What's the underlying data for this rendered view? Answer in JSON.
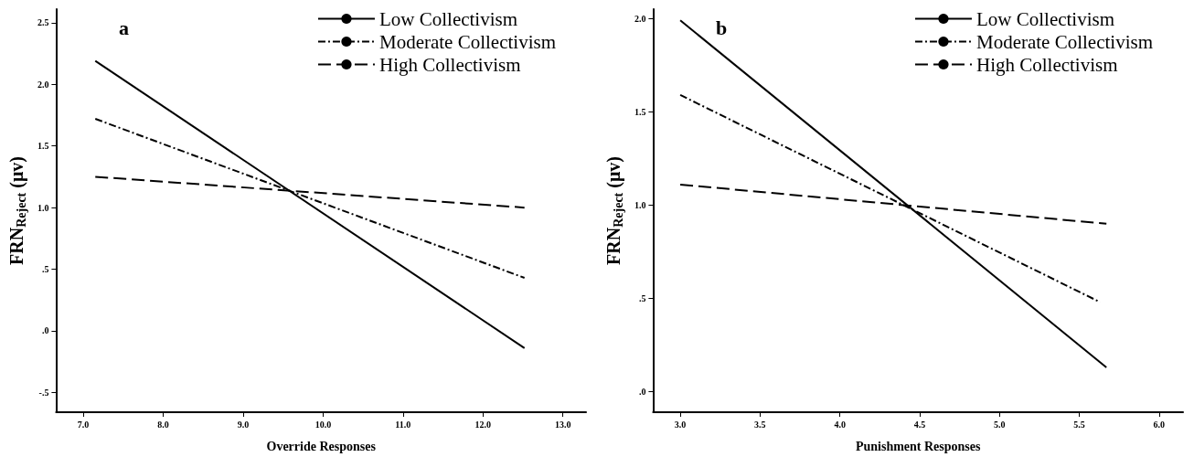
{
  "chart_data": [
    {
      "type": "line",
      "title": "a",
      "xlabel": "Override Responses",
      "ylabel": "FRN$_{Reject}$ (μv)",
      "legend": "top right",
      "grid": false,
      "xlim": [
        6.66,
        13.29
      ],
      "xticks": [
        {
          "value": 7,
          "label": "7.0"
        },
        {
          "value": 8,
          "label": "8.0"
        },
        {
          "value": 9,
          "label": "9.0"
        },
        {
          "value": 10,
          "label": "10.0"
        },
        {
          "value": 11,
          "label": "11.0"
        },
        {
          "value": 12,
          "label": "12.0"
        },
        {
          "value": 13,
          "label": "13.0"
        }
      ],
      "ylim": [
        -0.66,
        2.61
      ],
      "yticks": [
        {
          "value": -0.5,
          "label": "-.5"
        },
        {
          "value": 0,
          "label": ".0"
        },
        {
          "value": 0.5,
          "label": ".5"
        },
        {
          "value": 1,
          "label": "1.0"
        },
        {
          "value": 1.5,
          "label": "1.5"
        },
        {
          "value": 2,
          "label": "2.0"
        },
        {
          "value": 2.5,
          "label": "2.5"
        }
      ],
      "series": [
        {
          "name": "Low Collectivism",
          "color": "#000000",
          "line_style": "solid",
          "x": [
            7.15,
            12.52
          ],
          "values": [
            2.19,
            -0.14
          ]
        },
        {
          "name": "Moderate Collectivism",
          "color": "#000000",
          "line_style": "dashdot",
          "x": [
            7.15,
            12.52
          ],
          "values": [
            1.72,
            0.43
          ]
        },
        {
          "name": "High Collectivism",
          "color": "#000000",
          "line_style": "dashed",
          "x": [
            7.15,
            12.52
          ],
          "values": [
            1.25,
            1.0
          ]
        }
      ]
    },
    {
      "type": "line",
      "title": "b",
      "xlabel": "Punishment Responses",
      "ylabel": "FRN$_{Reject}$ (μv)",
      "legend": "top right",
      "grid": false,
      "xlim": [
        2.83,
        6.15
      ],
      "xticks": [
        {
          "value": 3,
          "label": "3.0"
        },
        {
          "value": 3.5,
          "label": "3.5"
        },
        {
          "value": 4,
          "label": "4.0"
        },
        {
          "value": 4.5,
          "label": "4.5"
        },
        {
          "value": 5,
          "label": "5.0"
        },
        {
          "value": 5.5,
          "label": "5.5"
        },
        {
          "value": 6,
          "label": "6.0"
        }
      ],
      "ylim": [
        -0.11,
        2.05
      ],
      "yticks": [
        {
          "value": 0,
          "label": ".0"
        },
        {
          "value": 0.5,
          "label": ".5"
        },
        {
          "value": 1,
          "label": "1.0"
        },
        {
          "value": 1.5,
          "label": "1.5"
        },
        {
          "value": 2,
          "label": "2.0"
        }
      ],
      "series": [
        {
          "name": "Low Collectivism",
          "color": "#000000",
          "line_style": "solid",
          "x": [
            3.0,
            5.67
          ],
          "values": [
            1.99,
            0.13
          ]
        },
        {
          "name": "Moderate Collectivism",
          "color": "#000000",
          "line_style": "dashdot",
          "x": [
            3.0,
            5.63
          ],
          "values": [
            1.59,
            0.48
          ]
        },
        {
          "name": "High Collectivism",
          "color": "#000000",
          "line_style": "dashed",
          "x": [
            3.0,
            5.67
          ],
          "values": [
            1.11,
            0.9
          ]
        }
      ]
    }
  ]
}
